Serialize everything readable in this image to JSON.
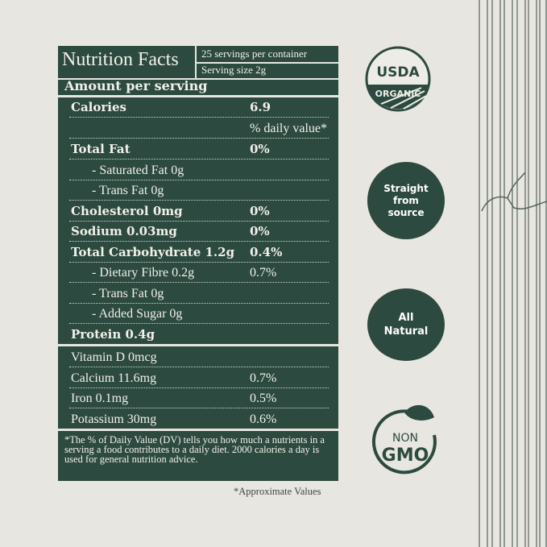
{
  "header": {
    "title": "Nutrition Facts",
    "servings": "25 servings per container",
    "serving_size": "Serving size 2g"
  },
  "amount_label": "Amount per serving",
  "calories": {
    "label": "Calories",
    "value": "6.9"
  },
  "daily_value_label": "% daily value*",
  "rows": [
    {
      "label": "Total Fat",
      "value": "0%",
      "bold": true
    },
    {
      "label": "- Saturated Fat 0g",
      "value": ""
    },
    {
      "label": "- Trans Fat 0g",
      "value": ""
    },
    {
      "label": "Cholesterol 0mg",
      "value": "0%",
      "bold": true
    },
    {
      "label": "Sodium 0.03mg",
      "value": "0%",
      "bold": true
    },
    {
      "label": "Total Carbohydrate 1.2g",
      "value": "0.4%",
      "bold": true
    },
    {
      "label": "- Dietary Fibre 0.2g",
      "value": "0.7%"
    },
    {
      "label": "- Trans Fat 0g",
      "value": ""
    },
    {
      "label": "- Added Sugar 0g",
      "value": ""
    },
    {
      "label": "Protein 0.4g",
      "value": "",
      "bold": true
    }
  ],
  "vitamins": [
    {
      "label": "Vitamin D 0mcg",
      "value": ""
    },
    {
      "label": "Calcium 11.6mg",
      "value": "0.7%"
    },
    {
      "label": "Iron 0.1mg",
      "value": "0.5%"
    },
    {
      "label": "Potassium 30mg",
      "value": "0.6%"
    }
  ],
  "footnote": "*The % of Daily Value (DV) tells you how much a nutrients in a serving a food contributes to a daily diet. 2000 calories a day is used for general nutrition advice.",
  "approx_note": "*Approximate Values",
  "badges": {
    "usda_top": "USDA",
    "usda_bottom": "ORGANIC",
    "straight": [
      "Straight",
      "from",
      "source"
    ],
    "natural": [
      "All",
      "Natural"
    ],
    "non": "NON",
    "gmo": "GMO"
  },
  "colors": {
    "green": "#2c4a3f",
    "background": "#e8e6e1"
  }
}
